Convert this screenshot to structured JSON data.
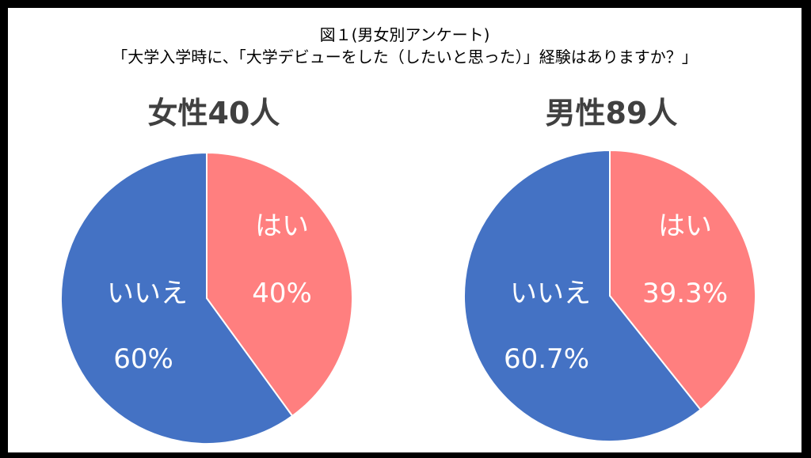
{
  "title": {
    "line1": "図１(男女別アンケート)",
    "line2": "「大学入学時に、「大学デビューをした（したいと思った）」経験はありますか？」"
  },
  "colors": {
    "yes": "#FF7F7F",
    "no": "#4472C4",
    "heading": "#404040",
    "border": "#000000"
  },
  "chart_data": [
    {
      "type": "pie",
      "title": "女性40人",
      "slices": [
        {
          "label": "はい",
          "value": 40,
          "value_label": "40%"
        },
        {
          "label": "いいえ",
          "value": 60,
          "value_label": "60%"
        }
      ]
    },
    {
      "type": "pie",
      "title": "男性89人",
      "slices": [
        {
          "label": "はい",
          "value": 39.3,
          "value_label": "39.3%"
        },
        {
          "label": "いいえ",
          "value": 60.7,
          "value_label": "60.7%"
        }
      ]
    }
  ]
}
